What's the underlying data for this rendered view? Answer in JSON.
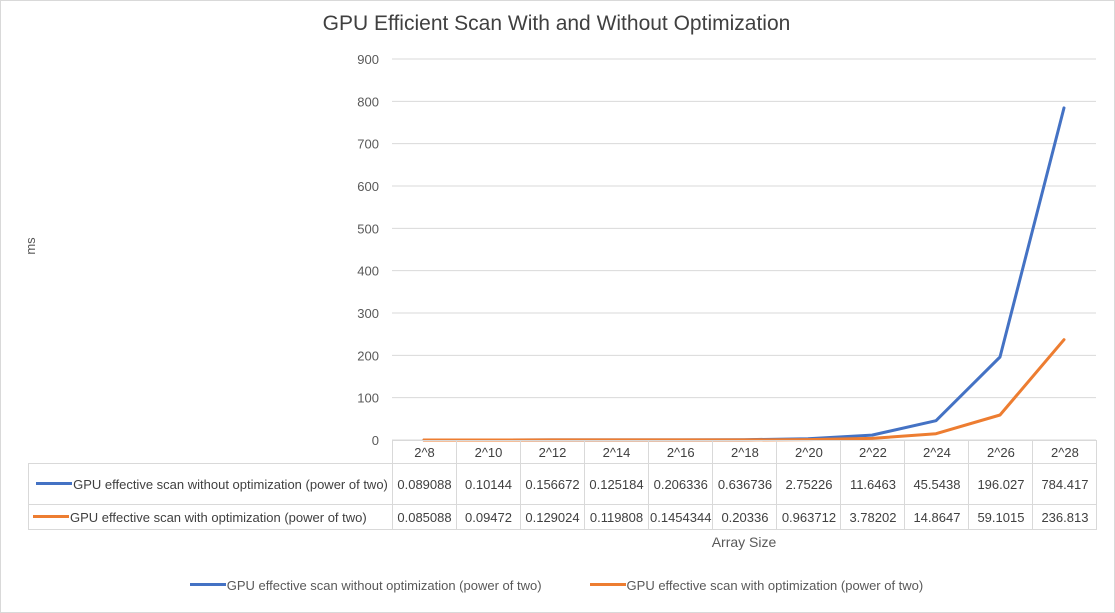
{
  "chart_data": {
    "type": "line",
    "title": "GPU Efficient Scan With and Without Optimization",
    "xlabel": "Array Size",
    "ylabel": "ms",
    "ylim": [
      0,
      900
    ],
    "yticks": [
      "0",
      "100",
      "200",
      "300",
      "400",
      "500",
      "600",
      "700",
      "800",
      "900"
    ],
    "categories": [
      "2^8",
      "2^10",
      "2^12",
      "2^14",
      "2^16",
      "2^18",
      "2^20",
      "2^22",
      "2^24",
      "2^26",
      "2^28"
    ],
    "grid": true,
    "legend_position": "bottom",
    "series": [
      {
        "name": "GPU effective scan without optimization (power of two)",
        "color": "#4472c4",
        "values": [
          0.089088,
          0.10144,
          0.156672,
          0.125184,
          0.206336,
          0.636736,
          2.75226,
          11.6463,
          45.5438,
          196.027,
          784.417
        ],
        "labels": [
          "0.089088",
          "0.10144",
          "0.156672",
          "0.125184",
          "0.206336",
          "0.636736",
          "2.75226",
          "11.6463",
          "45.5438",
          "196.027",
          "784.417"
        ]
      },
      {
        "name": "GPU effective scan with optimization (power of two)",
        "color": "#ed7d31",
        "values": [
          0.085088,
          0.09472,
          0.129024,
          0.119808,
          0.1454344,
          0.20336,
          0.963712,
          3.78202,
          14.8647,
          59.1015,
          236.813
        ],
        "labels": [
          "0.085088",
          "0.09472",
          "0.129024",
          "0.119808",
          "0.1454344",
          "0.20336",
          "0.963712",
          "3.78202",
          "14.8647",
          "59.1015",
          "236.813"
        ]
      }
    ]
  }
}
